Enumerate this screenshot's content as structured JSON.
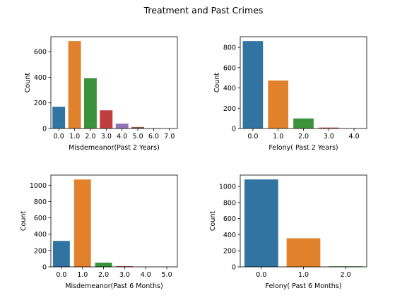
{
  "suptitle": "Treatment and Past Crimes",
  "palette": [
    "#3274a1",
    "#e1812c",
    "#3a923a",
    "#c03d3e",
    "#9372b2",
    "#845b53",
    "#d684bd",
    "#7f7f7f"
  ],
  "chart_data": [
    {
      "type": "bar",
      "categories": [
        "0.0",
        "1.0",
        "2.0",
        "3.0",
        "4.0",
        "5.0",
        "6.0",
        "7.0"
      ],
      "values": [
        170,
        683,
        393,
        142,
        38,
        12,
        3,
        1
      ],
      "xlabel": "Misdemeanor(Past 2 Years)",
      "ylabel": "Count",
      "ylim": [
        0,
        717
      ],
      "yticks": [
        0,
        200,
        400,
        600
      ]
    },
    {
      "type": "bar",
      "categories": [
        "0.0",
        "1.0",
        "2.0",
        "3.0",
        "4.0"
      ],
      "values": [
        862,
        473,
        99,
        9,
        2
      ],
      "xlabel": "Felony( Past 2 Years)",
      "ylabel": "Count",
      "ylim": [
        0,
        905
      ],
      "yticks": [
        0,
        200,
        400,
        600,
        800
      ]
    },
    {
      "type": "bar",
      "categories": [
        "0.0",
        "1.0",
        "2.0",
        "3.0",
        "4.0",
        "5.0"
      ],
      "values": [
        318,
        1070,
        52,
        8,
        1,
        1
      ],
      "xlabel": "Misdemeanor(Past 6 Months)",
      "ylabel": "Count",
      "ylim": [
        0,
        1124
      ],
      "yticks": [
        0,
        200,
        400,
        600,
        800,
        1000
      ]
    },
    {
      "type": "bar",
      "categories": [
        "0.0",
        "1.0",
        "2.0"
      ],
      "values": [
        1087,
        356,
        7
      ],
      "xlabel": "Felony( Past 6 Months)",
      "ylabel": "Count",
      "ylim": [
        0,
        1141
      ],
      "yticks": [
        0,
        200,
        400,
        600,
        800,
        1000
      ]
    }
  ]
}
